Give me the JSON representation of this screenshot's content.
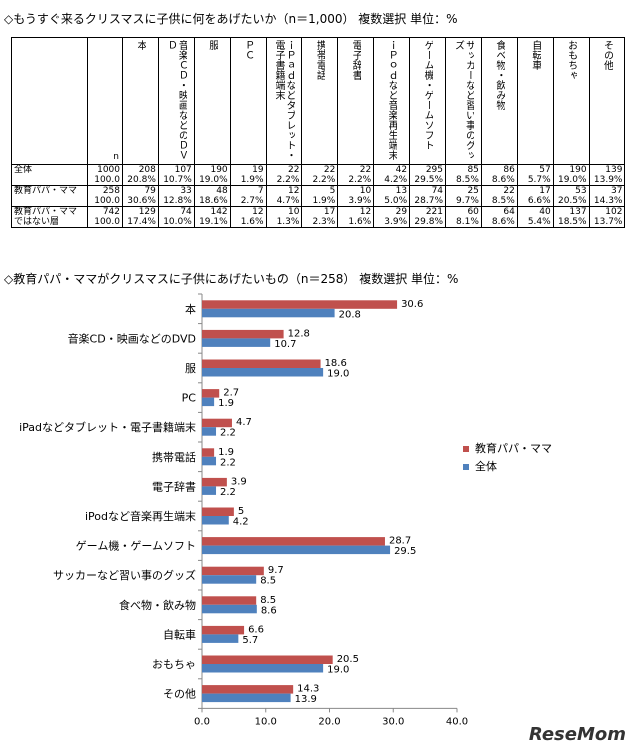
{
  "table": {
    "title": "◇もうすぐ来るクリスマスに子供に何をあげたいか（n＝1,000） 複数選択 単位：%",
    "n_header": "n",
    "columns": [
      "本",
      "音楽ＣＤ・映画などのＤＶＤ",
      "服",
      "ＰＣ",
      "ｉＰａｄなどタブレット・電子書籍端末",
      "携帯電話",
      "電子辞書",
      "ｉＰｏｄなど音楽再生端末",
      "ゲーム機・ゲームソフト",
      "サッカーなど習い事のグッズ",
      "食べ物・飲み物",
      "自転車",
      "おもちゃ",
      "その他"
    ],
    "rows": [
      {
        "label": "全体",
        "n": "1000",
        "n_pct": "100.0",
        "counts": [
          "208",
          "107",
          "190",
          "19",
          "22",
          "22",
          "22",
          "42",
          "295",
          "85",
          "86",
          "57",
          "190",
          "139"
        ],
        "pcts": [
          "20.8%",
          "10.7%",
          "19.0%",
          "1.9%",
          "2.2%",
          "2.2%",
          "2.2%",
          "4.2%",
          "29.5%",
          "8.5%",
          "8.6%",
          "5.7%",
          "19.0%",
          "13.9%"
        ]
      },
      {
        "label": "教育パパ・ママ",
        "n": "258",
        "n_pct": "100.0",
        "counts": [
          "79",
          "33",
          "48",
          "7",
          "12",
          "5",
          "10",
          "13",
          "74",
          "25",
          "22",
          "17",
          "53",
          "37"
        ],
        "pcts": [
          "30.6%",
          "12.8%",
          "18.6%",
          "2.7%",
          "4.7%",
          "1.9%",
          "3.9%",
          "5.0%",
          "28.7%",
          "9.7%",
          "8.5%",
          "6.6%",
          "20.5%",
          "14.3%"
        ]
      },
      {
        "label": "教育パパ・ママではない層",
        "n": "742",
        "n_pct": "100.0",
        "counts": [
          "129",
          "74",
          "142",
          "12",
          "10",
          "17",
          "12",
          "29",
          "221",
          "60",
          "64",
          "40",
          "137",
          "102"
        ],
        "pcts": [
          "17.4%",
          "10.0%",
          "19.1%",
          "1.6%",
          "1.3%",
          "2.3%",
          "1.6%",
          "3.9%",
          "29.8%",
          "8.1%",
          "8.6%",
          "5.4%",
          "18.5%",
          "13.7%"
        ]
      }
    ]
  },
  "chart_title": "◇教育パパ・ママがクリスマスに子供にあげたいもの（n＝258） 複数選択 単位：%",
  "chart_data": {
    "type": "bar",
    "orientation": "horizontal",
    "categories": [
      "本",
      "音楽CD・映画などのDVD",
      "服",
      "PC",
      "iPadなどタブレット・電子書籍端末",
      "携帯電話",
      "電子辞書",
      "iPodなど音楽再生端末",
      "ゲーム機・ゲームソフト",
      "サッカーなど習い事のグッズ",
      "食べ物・飲み物",
      "自転車",
      "おもちゃ",
      "その他"
    ],
    "series": [
      {
        "name": "教育パパ・ママ",
        "color": "#c0504d",
        "values": [
          30.6,
          12.8,
          18.6,
          2.7,
          4.7,
          1.9,
          3.9,
          5,
          28.7,
          9.7,
          8.5,
          6.6,
          20.5,
          14.3
        ],
        "labels": [
          "30.6",
          "12.8",
          "18.6",
          "2.7",
          "4.7",
          "1.9",
          "3.9",
          "5",
          "28.7",
          "9.7",
          "8.5",
          "6.6",
          "20.5",
          "14.3"
        ]
      },
      {
        "name": "全体",
        "color": "#4f81bd",
        "values": [
          20.8,
          10.7,
          19.0,
          1.9,
          2.2,
          2.2,
          2.2,
          4.2,
          29.5,
          8.5,
          8.6,
          5.7,
          19.0,
          13.9
        ],
        "labels": [
          "20.8",
          "10.7",
          "19.0",
          "1.9",
          "2.2",
          "2.2",
          "2.2",
          "4.2",
          "29.5",
          "8.5",
          "8.6",
          "5.7",
          "19.0",
          "13.9"
        ]
      }
    ],
    "xlim": [
      0,
      40
    ],
    "xticks": [
      "0.0",
      "10.0",
      "20.0",
      "30.0",
      "40.0"
    ],
    "grid": false,
    "legend": "right"
  },
  "logo": "ReseMom"
}
